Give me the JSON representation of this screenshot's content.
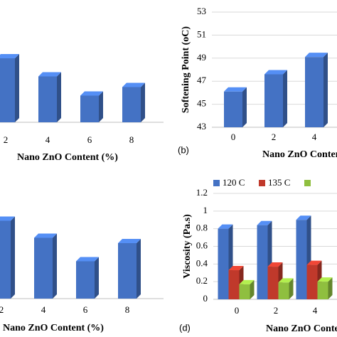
{
  "chart_data": [
    {
      "type": "bar",
      "x_label": "Nano ZnO Content (%)",
      "categories": [
        "2",
        "4",
        "6",
        "8"
      ],
      "values": [
        60,
        43,
        25,
        33
      ],
      "color": "#4472c4",
      "ylim": [
        0,
        100
      ]
    },
    {
      "type": "bar",
      "panel": "(b)",
      "x_label": "Nano ZnO Content (%)",
      "y_label": "Softening Point (oC)",
      "categories": [
        "0",
        "2",
        "4"
      ],
      "values": [
        46.1,
        47.6,
        49.1
      ],
      "color": "#4472c4",
      "ylim": [
        43,
        53
      ],
      "yticks": [
        43,
        45,
        47,
        49,
        51,
        53
      ],
      "grid": true
    },
    {
      "type": "bar",
      "x_label": "Nano ZnO Content (%)",
      "categories": [
        "2",
        "4",
        "6",
        "8"
      ],
      "values": [
        73,
        57,
        35,
        52
      ],
      "color": "#4472c4",
      "ylim": [
        0,
        100
      ]
    },
    {
      "type": "grouped_bar",
      "panel": "(d)",
      "x_label": "Nano ZnO Content (%)",
      "y_label": "Viscosity (Pa.s)",
      "categories": [
        "0",
        "2",
        "4"
      ],
      "series": [
        {
          "name": "120  C",
          "color": "#4472c4",
          "values": [
            0.8,
            0.84,
            0.9
          ]
        },
        {
          "name": "135  C",
          "color": "#c0392b",
          "values": [
            0.33,
            0.37,
            0.39
          ]
        },
        {
          "color": "#8fbf3f",
          "values": [
            0.17,
            0.19,
            0.2
          ]
        }
      ],
      "ylim": [
        0,
        1.2
      ],
      "yticks": [
        0,
        0.2,
        0.4,
        0.6,
        0.8,
        1,
        1.2
      ],
      "grid": true
    }
  ]
}
